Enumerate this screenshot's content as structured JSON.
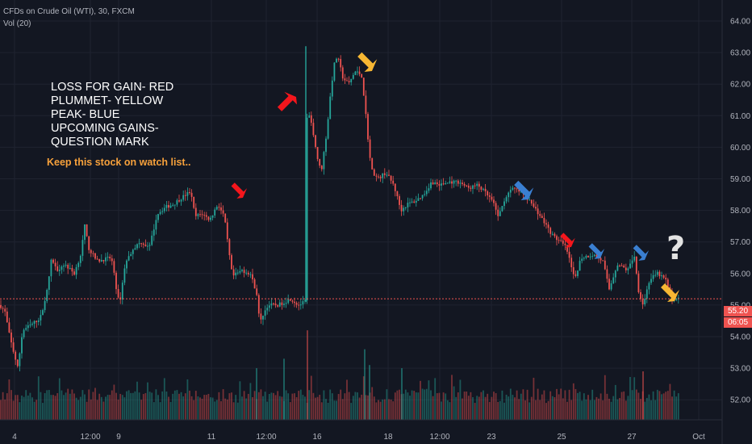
{
  "header": {
    "symbol_line": "CFDs on Crude Oil (WTI), 30, FXCM",
    "volume_label": "Vol (20)"
  },
  "annotations": {
    "legend_lines": [
      "LOSS FOR GAIN- RED",
      "PLUMMET- YELLOW",
      "PEAK- BLUE",
      "UPCOMING GAINS-",
      "QUESTION MARK"
    ],
    "watch_note": "Keep this stock on watch list..",
    "question_mark": "?"
  },
  "price_tags": {
    "last_price": "55.20",
    "countdown": "06:05"
  },
  "colors": {
    "background": "#131722",
    "up": "#26a69a",
    "down": "#ef5350",
    "grid": "#1f2330",
    "arrow_red": "#f4161c",
    "arrow_yellow": "#f7b733",
    "arrow_blue": "#3a7fd1"
  },
  "chart_data": {
    "type": "candlestick",
    "title": "CFDs on Crude Oil (WTI), 30, FXCM",
    "y_axis": {
      "position": "right",
      "ticks": [
        52.0,
        53.0,
        54.0,
        55.0,
        56.0,
        57.0,
        58.0,
        59.0,
        60.0,
        61.0,
        62.0,
        63.0,
        64.0
      ]
    },
    "x_axis": {
      "ticks": [
        "4",
        "12:00",
        "9",
        "11",
        "12:00",
        "16",
        "18",
        "12:00",
        "23",
        "25",
        "27",
        "Oct"
      ]
    },
    "last_price": 55.2,
    "price_path": [
      [
        0,
        55.0
      ],
      [
        6,
        54.8
      ],
      [
        12,
        54.0
      ],
      [
        18,
        53.4
      ],
      [
        22,
        53.0
      ],
      [
        28,
        54.2
      ],
      [
        40,
        54.4
      ],
      [
        50,
        54.6
      ],
      [
        58,
        55.4
      ],
      [
        64,
        56.5
      ],
      [
        70,
        56.1
      ],
      [
        80,
        56.3
      ],
      [
        92,
        56.0
      ],
      [
        100,
        56.6
      ],
      [
        105,
        57.5
      ],
      [
        110,
        56.8
      ],
      [
        120,
        56.4
      ],
      [
        138,
        56.5
      ],
      [
        145,
        55.4
      ],
      [
        148,
        55.0
      ],
      [
        155,
        56.3
      ],
      [
        165,
        56.8
      ],
      [
        175,
        57.0
      ],
      [
        185,
        56.8
      ],
      [
        195,
        57.9
      ],
      [
        205,
        58.1
      ],
      [
        215,
        58.2
      ],
      [
        225,
        58.4
      ],
      [
        236,
        58.6
      ],
      [
        242,
        57.8
      ],
      [
        250,
        57.9
      ],
      [
        260,
        57.7
      ],
      [
        270,
        58.2
      ],
      [
        278,
        57.8
      ],
      [
        283,
        56.8
      ],
      [
        288,
        55.9
      ],
      [
        300,
        56.1
      ],
      [
        310,
        56.0
      ],
      [
        318,
        55.4
      ],
      [
        322,
        54.4
      ],
      [
        326,
        54.7
      ],
      [
        332,
        55.0
      ],
      [
        345,
        55.0
      ],
      [
        360,
        55.2
      ],
      [
        370,
        55.0
      ],
      [
        378,
        55.1
      ],
      [
        381,
        61.8
      ],
      [
        383,
        61.0
      ],
      [
        388,
        60.5
      ],
      [
        393,
        59.7
      ],
      [
        398,
        59.2
      ],
      [
        405,
        60.5
      ],
      [
        410,
        61.8
      ],
      [
        414,
        62.6
      ],
      [
        418,
        62.9
      ],
      [
        425,
        62.2
      ],
      [
        432,
        62.0
      ],
      [
        440,
        62.4
      ],
      [
        448,
        62.3
      ],
      [
        452,
        61.4
      ],
      [
        456,
        60.3
      ],
      [
        460,
        59.3
      ],
      [
        468,
        59.0
      ],
      [
        478,
        59.2
      ],
      [
        488,
        58.8
      ],
      [
        497,
        58.0
      ],
      [
        505,
        58.2
      ],
      [
        515,
        58.3
      ],
      [
        525,
        58.5
      ],
      [
        535,
        58.9
      ],
      [
        545,
        58.8
      ],
      [
        558,
        58.9
      ],
      [
        570,
        58.9
      ],
      [
        580,
        58.7
      ],
      [
        592,
        58.8
      ],
      [
        600,
        58.6
      ],
      [
        610,
        58.3
      ],
      [
        618,
        57.8
      ],
      [
        626,
        58.4
      ],
      [
        636,
        58.7
      ],
      [
        650,
        58.5
      ],
      [
        665,
        58.0
      ],
      [
        675,
        57.6
      ],
      [
        685,
        57.2
      ],
      [
        695,
        57.0
      ],
      [
        702,
        56.8
      ],
      [
        712,
        55.8
      ],
      [
        720,
        56.5
      ],
      [
        735,
        56.6
      ],
      [
        747,
        56.4
      ],
      [
        755,
        55.5
      ],
      [
        765,
        56.3
      ],
      [
        778,
        56.1
      ],
      [
        786,
        56.6
      ],
      [
        791,
        55.5
      ],
      [
        797,
        55.0
      ],
      [
        805,
        55.8
      ],
      [
        815,
        56.0
      ],
      [
        825,
        55.8
      ],
      [
        832,
        55.2
      ],
      [
        842,
        55.2
      ]
    ],
    "volume_spikes": [
      [
        381,
        54.2
      ],
      [
        352,
        53.3
      ],
      [
        318,
        53.0
      ],
      [
        458,
        53.1
      ],
      [
        498,
        53.0
      ],
      [
        797,
        52.9
      ],
      [
        452,
        53.6
      ]
    ]
  }
}
